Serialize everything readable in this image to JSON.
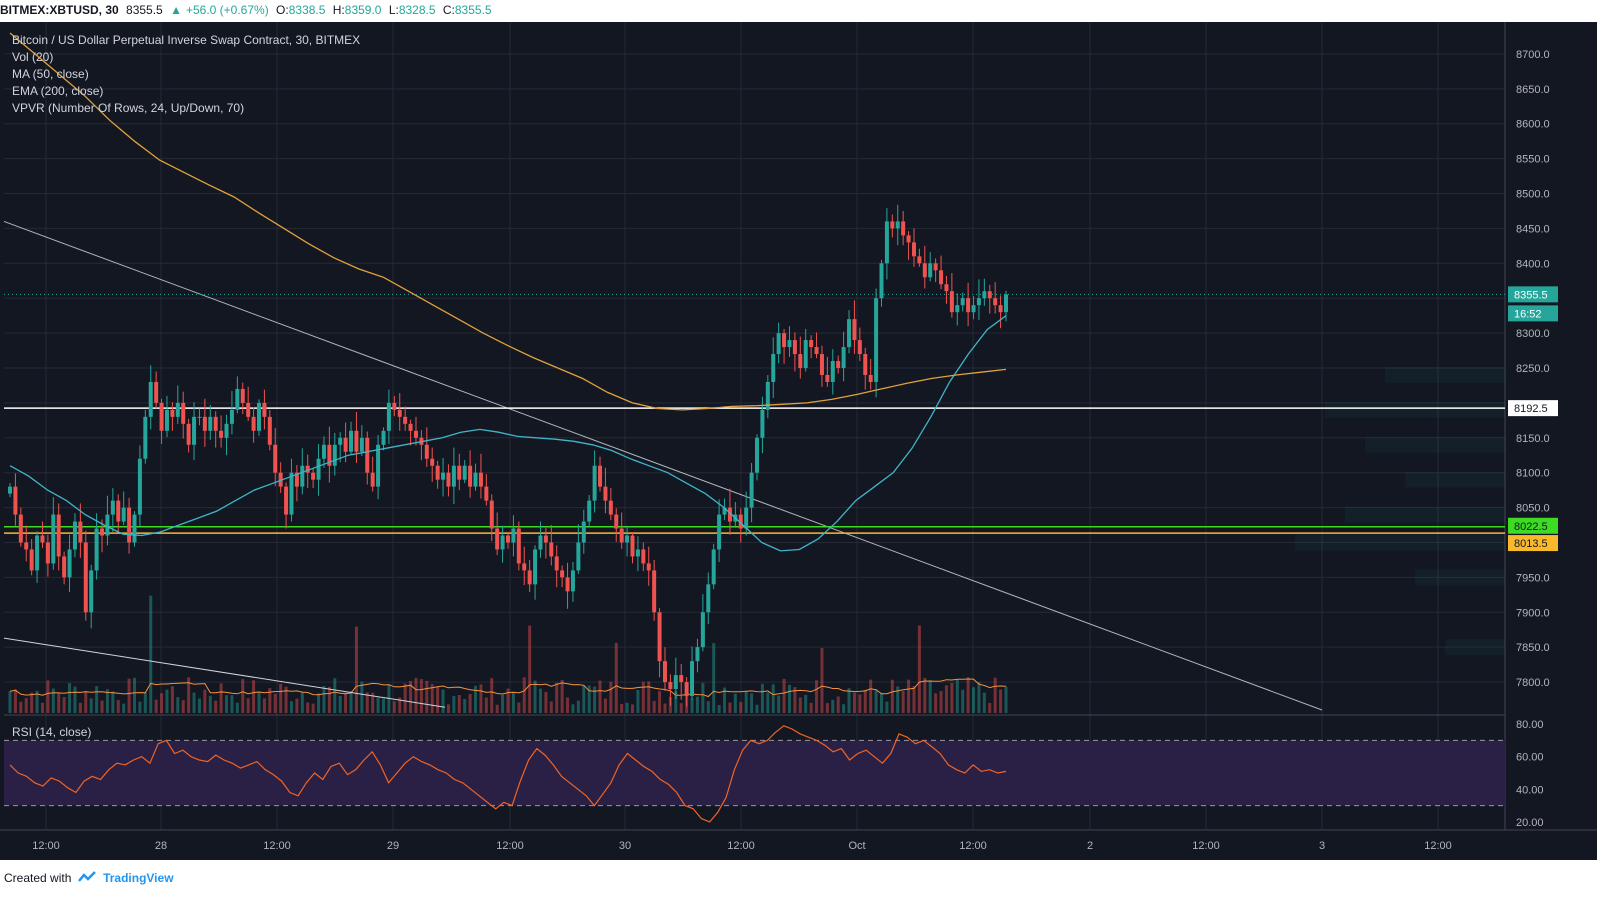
{
  "header": {
    "symbol": "BITMEX:XBTUSD, 30",
    "last": "8355.5",
    "change_arrow": "▲",
    "change": "+56.0 (+0.67%)",
    "o_label": "O:",
    "o": "8338.5",
    "h_label": "H:",
    "h": "8359.0",
    "l_label": "L:",
    "l": "8328.5",
    "c_label": "C:",
    "c": "8355.5"
  },
  "legend": [
    "Bitcoin / US Dollar Perpetual Inverse Swap Contract, 30, BITMEX",
    "Vol (20)",
    "MA (50, close)",
    "EMA (200, close)",
    "VPVR (Number Of Rows, 24, Up/Down, 70)"
  ],
  "rsi_label": "RSI (14, close)",
  "footer": {
    "created_with": "Created with",
    "brand": "TradingView",
    "logo_icon": "tradingview-logo-icon"
  },
  "colors": {
    "background": "#131722",
    "grid": "#262a35",
    "up": "#26a69a",
    "down": "#ef5350",
    "ma50": "#3fb5c9",
    "ema200": "#e0a23a",
    "volume_ma": "#f7913c",
    "rsi_line": "#f06424",
    "rsi_band": "#2a1f44",
    "level_white": "#ffffff",
    "level_green": "#3ddc22",
    "level_yellow": "#f9b92b"
  },
  "chart_data": {
    "type": "candlestick",
    "symbol": "BITMEX:XBTUSD",
    "interval": "30",
    "time_axis_labels": [
      "12:00",
      "28",
      "12:00",
      "29",
      "12:00",
      "30",
      "12:00",
      "Oct",
      "12:00",
      "2",
      "12:00",
      "3",
      "12:00"
    ],
    "price_axis": {
      "range": [
        7760,
        8740
      ],
      "ticks": [
        7800,
        7850,
        7900,
        7950,
        8000,
        8050,
        8100,
        8150,
        8200,
        8250,
        8300,
        8350,
        8400,
        8450,
        8500,
        8550,
        8600,
        8650,
        8700
      ]
    },
    "price_tick_labels": [
      "7800.0",
      "7850.0",
      "7900.0",
      "7950.0",
      "8000.0",
      "8050.0",
      "8100.0",
      "8150.0",
      "8250.0",
      "8300.0",
      "8400.0",
      "8450.0",
      "8500.0",
      "8550.0",
      "8600.0",
      "8650.0",
      "8700.0"
    ],
    "last_price": {
      "value": 8355.5,
      "label": "8355.5",
      "countdown": "16:52"
    },
    "horizontal_levels": [
      {
        "value": 8192.5,
        "label": "8192.5",
        "color": "#ffffff"
      },
      {
        "value": 8022.5,
        "label": "8022.5",
        "color": "#3ddc22"
      },
      {
        "value": 8013.5,
        "label": "8013.5",
        "color": "#f9b92b"
      }
    ],
    "closes": [
      8080,
      8040,
      8000,
      7990,
      7960,
      8010,
      8000,
      7970,
      8040,
      7980,
      7950,
      7990,
      8030,
      8000,
      7900,
      7960,
      8020,
      8010,
      8040,
      8060,
      8030,
      8050,
      8000,
      8040,
      8120,
      8180,
      8230,
      8200,
      8160,
      8190,
      8180,
      8200,
      8170,
      8140,
      8180,
      8180,
      8160,
      8180,
      8160,
      8150,
      8170,
      8190,
      8220,
      8200,
      8180,
      8160,
      8200,
      8180,
      8140,
      8100,
      8080,
      8040,
      8100,
      8080,
      8110,
      8100,
      8090,
      8120,
      8140,
      8110,
      8140,
      8150,
      8130,
      8160,
      8130,
      8150,
      8100,
      8080,
      8140,
      8160,
      8200,
      8190,
      8180,
      8170,
      8160,
      8150,
      8140,
      8120,
      8110,
      8090,
      8100,
      8080,
      8110,
      8090,
      8110,
      8080,
      8100,
      8080,
      8060,
      8020,
      7990,
      8010,
      8000,
      8020,
      7970,
      7960,
      7940,
      7990,
      8010,
      8000,
      7980,
      7960,
      7950,
      7930,
      7960,
      8000,
      8030,
      8060,
      8110,
      8080,
      8060,
      8040,
      8020,
      8000,
      8010,
      7980,
      7990,
      7970,
      7960,
      7900,
      7830,
      7800,
      7790,
      7810,
      7800,
      7780,
      7830,
      7850,
      7900,
      7940,
      7990,
      8040,
      8050,
      8030,
      8040,
      8020,
      8050,
      8100,
      8150,
      8190,
      8230,
      8270,
      8300,
      8280,
      8290,
      8270,
      8250,
      8290,
      8280,
      8270,
      8240,
      8230,
      8260,
      8250,
      8280,
      8320,
      8290,
      8270,
      8240,
      8230,
      8350,
      8400,
      8460,
      8450,
      8460,
      8440,
      8430,
      8410,
      8400,
      8380,
      8400,
      8390,
      8370,
      8360,
      8330,
      8340,
      8350,
      8330,
      8340,
      8350,
      8360,
      8350,
      8340,
      8330,
      8355.5
    ],
    "ma50": {
      "start": 0,
      "values": [
        8110,
        8095,
        8075,
        8060,
        8040,
        8025,
        8012,
        8010,
        8015,
        8025,
        8035,
        8045,
        8060,
        8075,
        8085,
        8095,
        8105,
        8115,
        8125,
        8130,
        8135,
        8140,
        8145,
        8150,
        8158,
        8162,
        8158,
        8152,
        8150,
        8148,
        8145,
        8140,
        8132,
        8120,
        8110,
        8100,
        8085,
        8070,
        8050,
        8025,
        8000,
        7988,
        7990,
        8005,
        8030,
        8060,
        8080,
        8100,
        8135,
        8180,
        8230,
        8270,
        8305,
        8325
      ]
    },
    "ema200": {
      "start": 0,
      "values": [
        8730,
        8700,
        8670,
        8640,
        8605,
        8575,
        8548,
        8530,
        8512,
        8495,
        8472,
        8450,
        8428,
        8408,
        8392,
        8380,
        8360,
        8340,
        8320,
        8300,
        8282,
        8265,
        8250,
        8235,
        8215,
        8200,
        8192,
        8190,
        8192,
        8195,
        8196,
        8198,
        8200,
        8205,
        8212,
        8220,
        8228,
        8235,
        8240,
        8244,
        8248
      ]
    },
    "rsi": {
      "range": [
        15,
        85
      ],
      "ticks": [
        20,
        40,
        60,
        80
      ],
      "tick_labels": [
        "20.00",
        "40.00",
        "60.00",
        "80.00"
      ],
      "overbought": 70,
      "oversold": 30,
      "values": [
        55,
        50,
        48,
        44,
        42,
        47,
        45,
        41,
        38,
        45,
        48,
        46,
        52,
        56,
        55,
        58,
        60,
        56,
        68,
        70,
        62,
        64,
        60,
        58,
        57,
        61,
        58,
        56,
        53,
        55,
        57,
        52,
        49,
        45,
        38,
        36,
        44,
        50,
        46,
        54,
        56,
        49,
        52,
        58,
        63,
        55,
        44,
        50,
        56,
        60,
        57,
        55,
        52,
        50,
        46,
        44,
        40,
        36,
        32,
        28,
        32,
        30,
        45,
        58,
        65,
        61,
        55,
        48,
        44,
        40,
        36,
        30,
        37,
        44,
        55,
        62,
        58,
        54,
        51,
        46,
        43,
        38,
        30,
        28,
        22,
        20,
        26,
        35,
        52,
        64,
        70,
        68,
        70,
        75,
        79,
        77,
        74,
        72,
        70,
        67,
        63,
        65,
        58,
        62,
        64,
        60,
        56,
        62,
        74,
        72,
        68,
        70,
        66,
        62,
        55,
        52,
        50,
        55,
        51,
        52,
        50,
        51
      ]
    },
    "volume": {
      "ma_shown": true
    }
  }
}
